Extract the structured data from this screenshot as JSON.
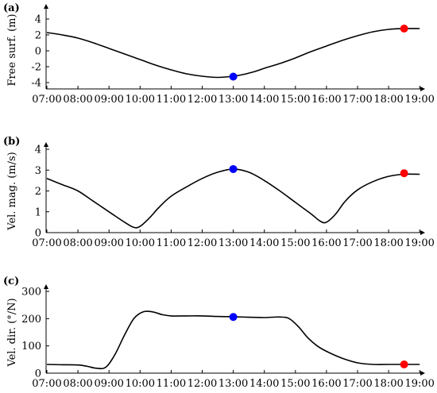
{
  "chart_data": [
    {
      "type": "line",
      "panel_label": "(a)",
      "ylabel": "Free surf. (m)",
      "xticks": [
        "07:00",
        "08:00",
        "09:00",
        "10:00",
        "11:00",
        "12:00",
        "13:00",
        "14:00",
        "15:00",
        "16:00",
        "17:00",
        "18:00",
        "19:00"
      ],
      "xlim": [
        7,
        19.3
      ],
      "ylim": [
        -4.8,
        5
      ],
      "yticks": [
        -4,
        -2,
        0,
        2,
        4
      ],
      "series": [
        {
          "color": "#000000",
          "x": [
            7.0,
            7.5,
            8.0,
            8.5,
            9.0,
            9.5,
            10.0,
            10.5,
            11.0,
            11.5,
            12.0,
            12.5,
            13.0,
            13.3,
            13.7,
            14.0,
            14.5,
            15.0,
            15.5,
            16.0,
            16.5,
            17.0,
            17.5,
            18.0,
            18.5,
            19.0
          ],
          "y": [
            2.3,
            2.0,
            1.6,
            1.0,
            0.3,
            -0.4,
            -1.1,
            -1.8,
            -2.4,
            -2.9,
            -3.2,
            -3.35,
            -3.2,
            -3.0,
            -2.6,
            -2.2,
            -1.6,
            -0.9,
            -0.1,
            0.6,
            1.3,
            1.9,
            2.4,
            2.7,
            2.8,
            2.8
          ]
        }
      ],
      "markers": [
        {
          "x": 13.0,
          "y": -3.25,
          "color": "#0000ff"
        },
        {
          "x": 18.5,
          "y": 2.8,
          "color": "#ff0000"
        }
      ]
    },
    {
      "type": "line",
      "panel_label": "(b)",
      "ylabel": "Vel. mag. (m/s)",
      "xticks": [
        "07:00",
        "08:00",
        "09:00",
        "10:00",
        "11:00",
        "12:00",
        "13:00",
        "14:00",
        "15:00",
        "16:00",
        "17:00",
        "18:00",
        "19:00"
      ],
      "xlim": [
        7,
        19.3
      ],
      "ylim": [
        0,
        4
      ],
      "yticks": [
        0,
        1,
        2,
        3,
        4
      ],
      "series": [
        {
          "color": "#000000",
          "x": [
            7.0,
            7.5,
            8.0,
            8.5,
            9.0,
            9.5,
            9.8,
            10.0,
            10.3,
            10.6,
            11.0,
            11.5,
            12.0,
            12.5,
            13.0,
            13.5,
            14.0,
            14.5,
            15.0,
            15.5,
            15.8,
            16.0,
            16.3,
            16.6,
            17.0,
            17.5,
            18.0,
            18.5,
            19.0
          ],
          "y": [
            2.6,
            2.3,
            2.0,
            1.5,
            1.0,
            0.5,
            0.25,
            0.3,
            0.7,
            1.2,
            1.75,
            2.2,
            2.6,
            2.9,
            3.05,
            2.9,
            2.5,
            2.0,
            1.45,
            0.9,
            0.55,
            0.5,
            0.9,
            1.5,
            2.05,
            2.45,
            2.7,
            2.8,
            2.8
          ]
        }
      ],
      "markers": [
        {
          "x": 13.0,
          "y": 3.05,
          "color": "#0000ff"
        },
        {
          "x": 18.5,
          "y": 2.85,
          "color": "#ff0000"
        }
      ]
    },
    {
      "type": "line",
      "panel_label": "(c)",
      "ylabel": "Vel. dir. (°/N)",
      "xticks": [
        "07:00",
        "08:00",
        "09:00",
        "10:00",
        "11:00",
        "12:00",
        "13:00",
        "14:00",
        "15:00",
        "16:00",
        "17:00",
        "18:00",
        "19:00"
      ],
      "xlim": [
        7,
        19.3
      ],
      "ylim": [
        0,
        300
      ],
      "yticks": [
        0,
        100,
        200,
        300
      ],
      "series": [
        {
          "color": "#000000",
          "x": [
            7.0,
            7.5,
            8.0,
            8.3,
            8.6,
            8.9,
            9.2,
            9.5,
            9.8,
            10.1,
            10.4,
            10.7,
            11.0,
            11.5,
            12.0,
            12.5,
            13.0,
            13.5,
            14.0,
            14.5,
            14.8,
            15.1,
            15.4,
            15.7,
            16.0,
            16.5,
            17.0,
            17.5,
            18.0,
            18.5,
            19.0
          ],
          "y": [
            32,
            31,
            30,
            25,
            18,
            22,
            70,
            140,
            200,
            225,
            225,
            215,
            210,
            210,
            210,
            208,
            207,
            205,
            204,
            206,
            200,
            170,
            130,
            100,
            80,
            55,
            38,
            32,
            32,
            32,
            32
          ]
        }
      ],
      "markers": [
        {
          "x": 13.0,
          "y": 206,
          "color": "#0000ff"
        },
        {
          "x": 18.5,
          "y": 32,
          "color": "#ff0000"
        }
      ]
    }
  ]
}
